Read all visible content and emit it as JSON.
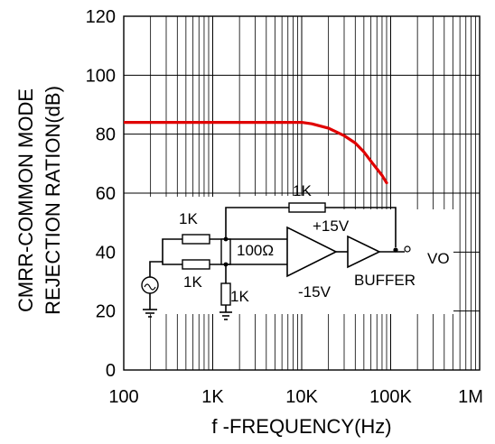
{
  "chart_data": {
    "type": "line",
    "xscale": "log",
    "x_tick_labels": [
      "100",
      "1K",
      "10K",
      "100K",
      "1M"
    ],
    "x_ticks": [
      100,
      1000,
      10000,
      100000,
      1000000
    ],
    "y_tick_labels": [
      "0",
      "20",
      "40",
      "60",
      "80",
      "100",
      "120"
    ],
    "y_ticks": [
      0,
      20,
      40,
      60,
      80,
      100,
      120
    ],
    "xlim": [
      100,
      1000000
    ],
    "ylim": [
      0,
      120
    ],
    "xlabel": "f -FREQUENCY(Hz)",
    "ylabel_line1": "CMRR-COMMON MODE",
    "ylabel_line2": "REJECTION RATION(dB)",
    "grid": true,
    "series": [
      {
        "color": "#e00000",
        "points": [
          [
            30,
            84
          ],
          [
            100,
            84
          ],
          [
            1000,
            84
          ],
          [
            10000,
            84
          ],
          [
            13000,
            83.5
          ],
          [
            20000,
            82
          ],
          [
            30000,
            79.5
          ],
          [
            40000,
            77
          ],
          [
            50000,
            74
          ],
          [
            63000,
            70
          ],
          [
            80000,
            66
          ],
          [
            90000,
            63.5
          ]
        ]
      }
    ]
  },
  "inset_circuit": {
    "labels": {
      "r_in_top": "1K",
      "r_in_bottom": "1K",
      "r_feedback": "1K",
      "r_ground": "1K",
      "r_balance": "100Ω",
      "v_pos": "+15V",
      "v_neg": "-15V",
      "buffer": "BUFFER",
      "output": "VO"
    }
  }
}
